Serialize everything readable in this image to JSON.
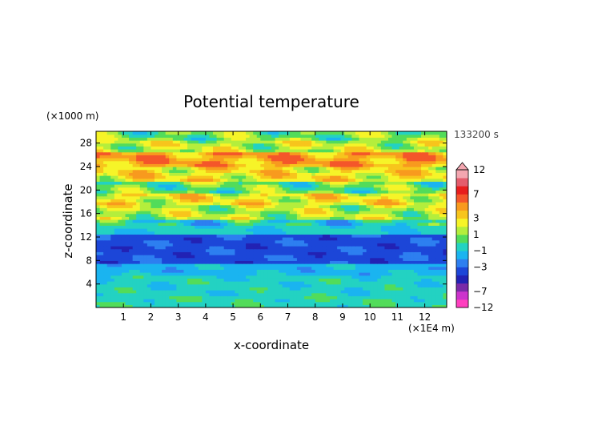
{
  "chart_data": {
    "type": "heatmap",
    "title": "Potential temperature",
    "xlabel": "x-coordinate",
    "ylabel": "z-coordinate",
    "x_unit": "(×1E4 m)",
    "y_unit": "(×1000 m)",
    "time_label": "133200 s",
    "xlim": [
      0,
      12.8
    ],
    "ylim": [
      0,
      30
    ],
    "x_ticks": [
      1,
      2,
      3,
      4,
      5,
      6,
      7,
      8,
      9,
      10,
      11,
      12
    ],
    "y_ticks": [
      4,
      8,
      12,
      16,
      20,
      24,
      28
    ],
    "colorbar": {
      "labeled_ticks": [
        "12",
        "7",
        "3",
        "1",
        "−1",
        "−3",
        "−7",
        "−12"
      ],
      "levels": [
        -12,
        -9,
        -7,
        -5,
        -4,
        -3,
        -2,
        -1,
        0,
        1,
        2,
        3,
        4,
        5,
        7,
        9,
        12
      ],
      "colors": [
        "#ff3fbf",
        "#cc33cc",
        "#7a2aa8",
        "#2222b4",
        "#1c46d8",
        "#2d7ff0",
        "#1ab4f0",
        "#23d2c2",
        "#52dc5a",
        "#b4ee3c",
        "#f6f428",
        "#f7c51c",
        "#f89a1e",
        "#f4562a",
        "#e81d1d",
        "#e45c6c",
        "#f3a6b0"
      ]
    },
    "layers": [
      {
        "z": [
          0,
          2.2
        ],
        "value": -0.3
      },
      {
        "z": [
          2.2,
          5.5
        ],
        "value": -0.6
      },
      {
        "z": [
          5.5,
          7.5
        ],
        "value": -1.4
      },
      {
        "z": [
          7.5,
          12.6
        ],
        "value": -3.4
      },
      {
        "z": [
          12.6,
          14.8
        ],
        "value": -0.8
      },
      {
        "z": [
          14.8,
          17.5
        ],
        "value": 1.6
      },
      {
        "z": [
          17.5,
          19.5
        ],
        "value": 2.6
      },
      {
        "z": [
          19.5,
          21.5
        ],
        "value": 0.6
      },
      {
        "z": [
          21.5,
          24.0
        ],
        "value": 2.8
      },
      {
        "z": [
          24.0,
          26.5
        ],
        "value": 4.2
      },
      {
        "z": [
          26.5,
          28.5
        ],
        "value": 1.8
      },
      {
        "z": [
          28.5,
          30.0
        ],
        "value": 0.8
      }
    ]
  }
}
